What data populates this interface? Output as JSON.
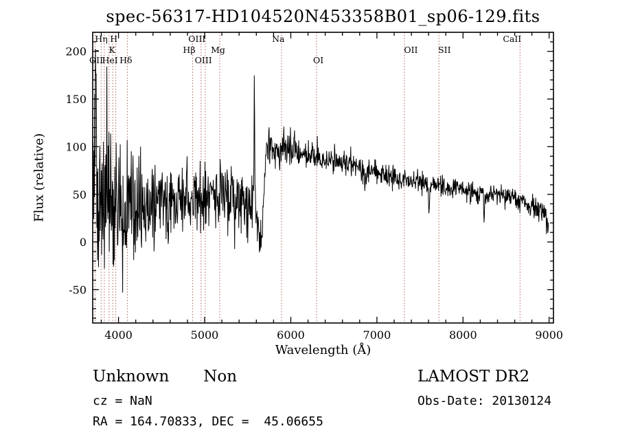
{
  "title": "spec-56317-HD104520N453358B01_sp06-129.fits",
  "x_axis": {
    "label": "Wavelength (Å)",
    "major_ticks": [
      4000,
      5000,
      6000,
      7000,
      8000,
      9000
    ],
    "minor_step": 200
  },
  "y_axis": {
    "label": "Flux (relative)",
    "major_ticks": [
      -50,
      0,
      50,
      100,
      150,
      200
    ],
    "minor_step": 10
  },
  "line_markers": {
    "color": "#9e4338",
    "wavelengths": [
      3727,
      3798,
      3835,
      3889,
      3933,
      3968,
      4102,
      4861,
      4959,
      5007,
      5175,
      5893,
      6300,
      7320,
      7720,
      8662
    ],
    "labels": [
      {
        "text": "Hη",
        "wl": 3800,
        "row": 1
      },
      {
        "text": "H",
        "wl": 3945,
        "row": 1
      },
      {
        "text": "OIII",
        "wl": 4910,
        "row": 1
      },
      {
        "text": "Na",
        "wl": 5855,
        "row": 1
      },
      {
        "text": "CaII",
        "wl": 8570,
        "row": 1
      },
      {
        "text": "–",
        "wl": 3750,
        "row": 2
      },
      {
        "text": "K",
        "wl": 3925,
        "row": 2
      },
      {
        "text": "Hβ",
        "wl": 4820,
        "row": 2
      },
      {
        "text": "Mg",
        "wl": 5155,
        "row": 2
      },
      {
        "text": "OII",
        "wl": 7395,
        "row": 2
      },
      {
        "text": "SII",
        "wl": 7785,
        "row": 2
      },
      {
        "text": "OII",
        "wl": 3740,
        "row": 3
      },
      {
        "text": "HeI",
        "wl": 3900,
        "row": 3
      },
      {
        "text": "Hδ",
        "wl": 4085,
        "row": 3
      },
      {
        "text": "OIII",
        "wl": 4985,
        "row": 3
      },
      {
        "text": "OI",
        "wl": 6320,
        "row": 3
      }
    ]
  },
  "annotations": {
    "class": "Unknown",
    "subclass": "Non",
    "survey": "LAMOST DR2",
    "cz": "cz = NaN",
    "obs_date": "Obs-Date: 20130124",
    "radec": "RA = 164.70833, DEC =  45.06655"
  },
  "chart_data": {
    "type": "line",
    "title": "spec-56317-HD104520N453358B01_sp06-129.fits",
    "xlabel": "Wavelength (Å)",
    "ylabel": "Flux (relative)",
    "xlim": [
      3700,
      9050
    ],
    "ylim": [
      -85,
      220
    ],
    "grid": false,
    "seed": 20130124,
    "wl_start": 3700,
    "wl_end": 8995,
    "step": 4,
    "continuum": [
      [
        3700,
        60
      ],
      [
        3780,
        58
      ],
      [
        3850,
        52
      ],
      [
        3950,
        45
      ],
      [
        4100,
        40
      ],
      [
        4300,
        42
      ],
      [
        4600,
        44
      ],
      [
        4900,
        47
      ],
      [
        5100,
        46
      ],
      [
        5300,
        44
      ],
      [
        5450,
        42
      ],
      [
        5540,
        40
      ],
      [
        5580,
        34
      ],
      [
        5610,
        22
      ],
      [
        5645,
        8
      ],
      [
        5668,
        18
      ],
      [
        5690,
        55
      ],
      [
        5715,
        95
      ],
      [
        5750,
        100
      ],
      [
        5850,
        98
      ],
      [
        6000,
        95
      ],
      [
        6200,
        91
      ],
      [
        6500,
        85
      ],
      [
        6800,
        78
      ],
      [
        7100,
        70
      ],
      [
        7400,
        64
      ],
      [
        7700,
        59
      ],
      [
        8000,
        54
      ],
      [
        8300,
        50
      ],
      [
        8600,
        45
      ],
      [
        8800,
        38
      ],
      [
        8950,
        30
      ],
      [
        9000,
        26
      ]
    ],
    "noise_sigma": [
      [
        3700,
        50
      ],
      [
        3800,
        52
      ],
      [
        3900,
        45
      ],
      [
        4000,
        35
      ],
      [
        4150,
        27
      ],
      [
        4400,
        21
      ],
      [
        4800,
        19
      ],
      [
        5200,
        20
      ],
      [
        5500,
        20
      ],
      [
        5600,
        12
      ],
      [
        5660,
        10
      ],
      [
        5700,
        12
      ],
      [
        5750,
        11
      ],
      [
        5900,
        10
      ],
      [
        6100,
        8
      ],
      [
        6500,
        7
      ],
      [
        7000,
        6
      ],
      [
        7500,
        5.5
      ],
      [
        8000,
        5
      ],
      [
        8500,
        5
      ],
      [
        8800,
        6
      ],
      [
        9000,
        7
      ]
    ],
    "features": [
      {
        "wl": 3735,
        "amp": 115,
        "sigma": 3
      },
      {
        "wl": 3862,
        "amp": 120,
        "sigma": 3
      },
      {
        "wl": 4048,
        "amp": -60,
        "sigma": 4
      },
      {
        "wl": 5350,
        "amp": -45,
        "sigma": 4
      },
      {
        "wl": 5577,
        "amp": 150,
        "sigma": 4
      },
      {
        "wl": 5640,
        "amp": -10,
        "sigma": 10
      },
      {
        "wl": 6868,
        "amp": -12,
        "sigma": 7
      },
      {
        "wl": 7605,
        "amp": -26,
        "sigma": 9
      },
      {
        "wl": 8245,
        "amp": -26,
        "sigma": 5
      },
      {
        "wl": 8990,
        "amp": -20,
        "sigma": 12
      }
    ]
  }
}
